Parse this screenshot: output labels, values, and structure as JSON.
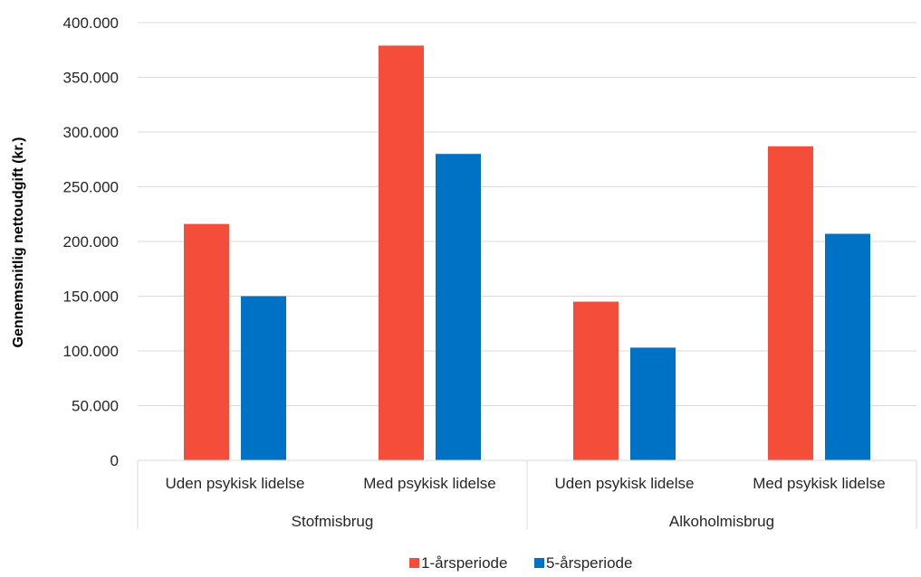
{
  "chart_data": {
    "type": "bar",
    "ylabel": "Gennemsnitlig nettoudgift (kr.)",
    "ylim": [
      0,
      400000
    ],
    "y_ticks": [
      "0",
      "50.000",
      "100.000",
      "150.000",
      "200.000",
      "250.000",
      "300.000",
      "350.000",
      "400.000"
    ],
    "groups": [
      {
        "name": "Stofmisbrug",
        "categories": [
          "Uden psykisk lidelse",
          "Med psykisk lidelse"
        ]
      },
      {
        "name": "Alkoholmisbrug",
        "categories": [
          "Uden psykisk lidelse",
          "Med psykisk lidelse"
        ]
      }
    ],
    "categories": [
      "Uden psykisk lidelse",
      "Med psykisk lidelse",
      "Uden psykisk lidelse",
      "Med psykisk lidelse"
    ],
    "series": [
      {
        "name": "1-årsperiode",
        "color": "#F44E3B",
        "values": [
          216000,
          379000,
          145000,
          287000
        ]
      },
      {
        "name": "5-årsperiode",
        "color": "#0072C6",
        "values": [
          150000,
          280000,
          103000,
          207000
        ]
      }
    ],
    "grid": true,
    "legend": "bottom-center"
  }
}
